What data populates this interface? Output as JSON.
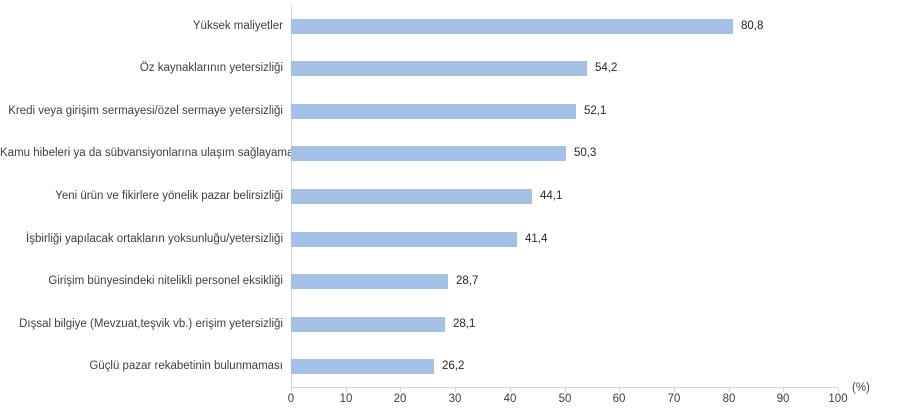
{
  "chart_data": {
    "type": "bar",
    "orientation": "horizontal",
    "title": "",
    "xlabel": "(%)",
    "ylabel": "",
    "xlim": [
      0,
      100
    ],
    "x_ticks": [
      0,
      10,
      20,
      30,
      40,
      50,
      60,
      70,
      80,
      90,
      100
    ],
    "grid": false,
    "legend": null,
    "bar_color": "#a5c0e5",
    "axis_line_color": "#d6d6d6",
    "categories": [
      "Yüksek maliyetler",
      "Öz kaynaklarının yetersizliği",
      "Kredi veya girişim sermayesi/özel sermaye yetersizliği",
      "Kamu hibeleri ya da sübvansiyonlarına ulaşım sağlayamama",
      "Yeni ürün ve fikirlere yönelik pazar belirsizliği",
      "İşbirliği yapılacak ortakların yoksunluğu/yetersizliği",
      "Girişim bünyesindeki nitelikli personel eksikliği",
      "Dışsal bilgiye (Mevzuat,teşvik vb.) erişim yetersizliği",
      "Güçlü pazar rekabetinin bulunmaması"
    ],
    "values": [
      80.8,
      54.2,
      52.1,
      50.3,
      44.1,
      41.4,
      28.7,
      28.1,
      26.2
    ],
    "value_labels": [
      "80,8",
      "54,2",
      "52,1",
      "50,3",
      "44,1",
      "41,4",
      "28,7",
      "28,1",
      "26,2"
    ],
    "percent_axis_label": "(%)"
  }
}
